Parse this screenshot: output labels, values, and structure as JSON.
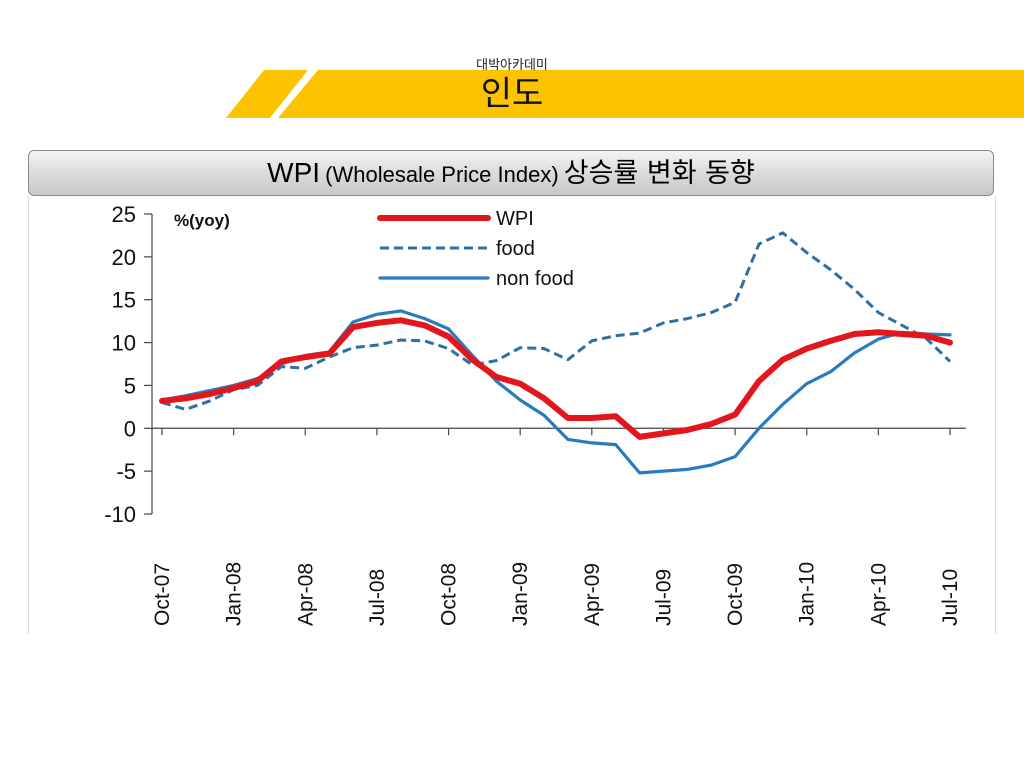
{
  "header": {
    "subtitle": "대박아카데미",
    "title": "인도"
  },
  "colors": {
    "banner_yellow": "#fcc400",
    "wpi": "#e3161e",
    "food": "#2f6fa5",
    "non_food": "#2a7bbd"
  },
  "chart_header": {
    "title_main": "WPI",
    "title_paren": "(Wholesale Price Index)",
    "title_korean": "상승률 변화 동향"
  },
  "chart_data": {
    "type": "line",
    "unit_label": "%(yoy)",
    "ylim": [
      -10,
      25
    ],
    "yticks": [
      25,
      20,
      15,
      10,
      5,
      0,
      -5,
      -10
    ],
    "x": [
      "Oct-07",
      "Nov-07",
      "Dec-07",
      "Jan-08",
      "Feb-08",
      "Mar-08",
      "Apr-08",
      "May-08",
      "Jun-08",
      "Jul-08",
      "Aug-08",
      "Sep-08",
      "Oct-08",
      "Nov-08",
      "Dec-08",
      "Jan-09",
      "Feb-09",
      "Mar-09",
      "Apr-09",
      "May-09",
      "Jun-09",
      "Jul-09",
      "Aug-09",
      "Sep-09",
      "Oct-09",
      "Nov-09",
      "Dec-09",
      "Jan-10",
      "Feb-10",
      "Mar-10",
      "Apr-10",
      "May-10",
      "Jun-10",
      "Jul-10"
    ],
    "xtick_labels": [
      "Oct-07",
      "Jan-08",
      "Apr-08",
      "Jul-08",
      "Oct-08",
      "Jan-09",
      "Apr-09",
      "Jul-09",
      "Oct-09",
      "Jan-10",
      "Apr-10",
      "Jul-10"
    ],
    "legend_position": "top-center",
    "series": [
      {
        "name": "WPI",
        "style": "solid-thick",
        "color": "#e3161e",
        "values": [
          3.2,
          3.5,
          4.0,
          4.7,
          5.5,
          7.8,
          8.3,
          8.7,
          11.8,
          12.3,
          12.6,
          12.0,
          10.7,
          8.0,
          6.0,
          5.2,
          3.5,
          1.2,
          1.2,
          1.4,
          -1.0,
          -0.6,
          -0.2,
          0.5,
          1.6,
          5.5,
          8.0,
          9.3,
          10.2,
          11.0,
          11.2,
          11.0,
          10.8,
          10.0
        ]
      },
      {
        "name": "food",
        "style": "dashed",
        "color": "#2f6fa5",
        "values": [
          3.0,
          2.2,
          3.2,
          4.5,
          5.0,
          7.2,
          7.0,
          8.3,
          9.4,
          9.7,
          10.3,
          10.2,
          9.3,
          7.4,
          7.9,
          9.4,
          9.3,
          8.0,
          10.2,
          10.8,
          11.1,
          12.3,
          12.8,
          13.5,
          14.7,
          21.5,
          22.8,
          20.5,
          18.5,
          16.2,
          13.5,
          12.0,
          10.5,
          7.8
        ]
      },
      {
        "name": "non food",
        "style": "solid",
        "color": "#2a7bbd",
        "values": [
          3.3,
          3.8,
          4.4,
          5.0,
          5.8,
          7.5,
          8.5,
          8.9,
          12.4,
          13.3,
          13.7,
          12.8,
          11.6,
          8.5,
          5.5,
          3.3,
          1.5,
          -1.3,
          -1.7,
          -1.9,
          -5.2,
          -5.0,
          -4.8,
          -4.3,
          -3.3,
          0.0,
          2.8,
          5.2,
          6.6,
          8.8,
          10.4,
          11.2,
          11.0,
          10.9
        ]
      }
    ]
  }
}
